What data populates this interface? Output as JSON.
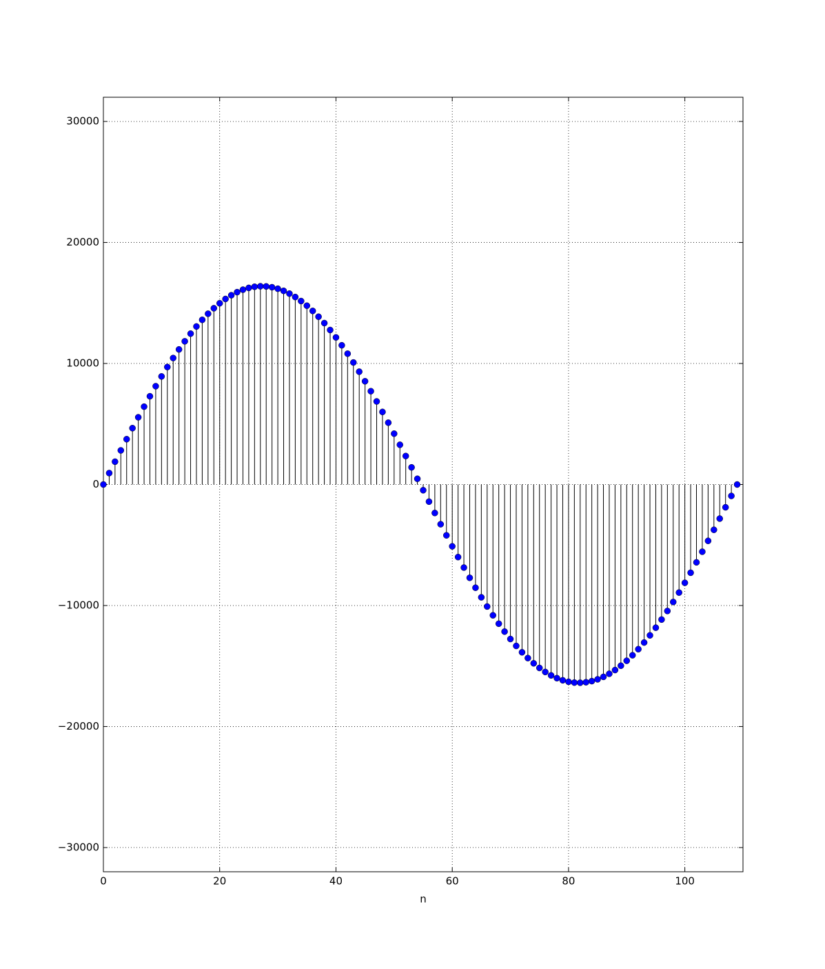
{
  "chart_data": {
    "type": "stem",
    "xlabel": "n",
    "x": [
      0,
      1,
      2,
      3,
      4,
      5,
      6,
      7,
      8,
      9,
      10,
      11,
      12,
      13,
      14,
      15,
      16,
      17,
      18,
      19,
      20,
      21,
      22,
      23,
      24,
      25,
      26,
      27,
      28,
      29,
      30,
      31,
      32,
      33,
      34,
      35,
      36,
      37,
      38,
      39,
      40,
      41,
      42,
      43,
      44,
      45,
      46,
      47,
      48,
      49,
      50,
      51,
      52,
      53,
      54,
      55,
      56,
      57,
      58,
      59,
      60,
      61,
      62,
      63,
      64,
      65,
      66,
      67,
      68,
      69,
      70,
      71,
      72,
      73,
      74,
      75,
      76,
      77,
      78,
      79,
      80,
      81,
      82,
      83,
      84,
      85,
      86,
      87,
      88,
      89,
      90,
      91,
      92,
      93,
      94,
      95,
      96,
      97,
      98,
      99,
      100,
      101,
      102,
      103,
      104,
      105,
      106,
      107,
      108,
      109
    ],
    "values": [
      0,
      944,
      1885,
      2819,
      3744,
      4657,
      5554,
      6433,
      7291,
      8124,
      8930,
      9707,
      10451,
      11160,
      11833,
      12466,
      13058,
      13607,
      14110,
      14566,
      14974,
      15332,
      15640,
      15895,
      16098,
      16247,
      16341,
      16382,
      16369,
      16301,
      16178,
      16003,
      15774,
      15492,
      15159,
      14776,
      14344,
      13864,
      13338,
      12767,
      12155,
      11502,
      10810,
      10083,
      9322,
      8531,
      7710,
      6865,
      5996,
      5108,
      4202,
      3283,
      2353,
      1415,
      472,
      -472,
      -1415,
      -2353,
      -3283,
      -4202,
      -5108,
      -5996,
      -6865,
      -7710,
      -8531,
      -9322,
      -10083,
      -10810,
      -11502,
      -12155,
      -12767,
      -13338,
      -13864,
      -14344,
      -14776,
      -15159,
      -15492,
      -15774,
      -16003,
      -16178,
      -16301,
      -16369,
      -16382,
      -16341,
      -16247,
      -16098,
      -15895,
      -15640,
      -15332,
      -14974,
      -14566,
      -14110,
      -13607,
      -13058,
      -12466,
      -11833,
      -11160,
      -10451,
      -9707,
      -8930,
      -8124,
      -7291,
      -6433,
      -5554,
      -4657,
      -3744,
      -2819,
      -1885,
      -944,
      0
    ],
    "color": "#0000ff",
    "stem_color": "#000000",
    "xlim": [
      0,
      110
    ],
    "xticks": [
      0,
      20,
      40,
      60,
      80,
      100
    ],
    "ylim": [
      -32000,
      32000
    ],
    "yticks": [
      {
        "value": -30000,
        "label": "−30000"
      },
      {
        "value": -20000,
        "label": "−20000"
      },
      {
        "value": -10000,
        "label": "−10000"
      },
      0,
      10000,
      20000,
      30000
    ],
    "grid": true
  }
}
